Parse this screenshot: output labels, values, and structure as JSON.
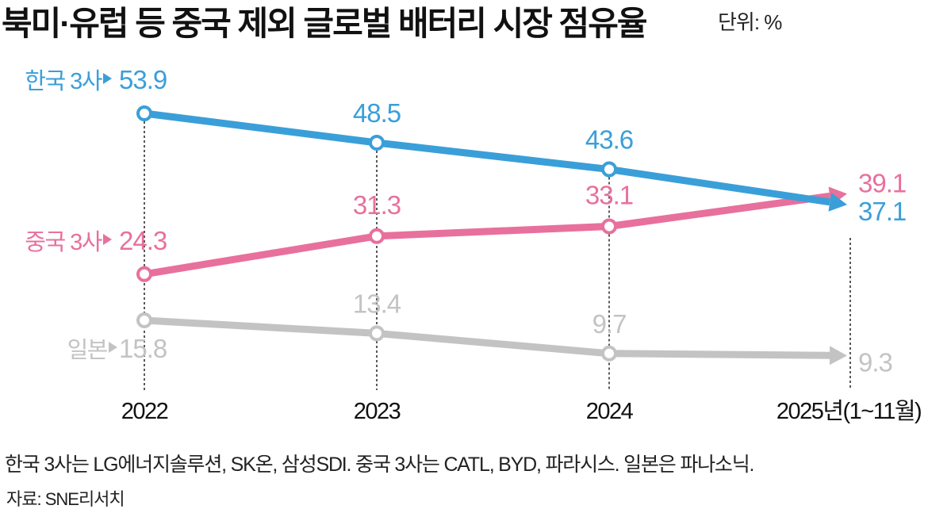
{
  "title": "북미·유럽 등 중국 제외 글로벌 배터리 시장 점유율",
  "unit": "단위: %",
  "note": "한국 3사는 LG에너지솔루션, SK온, 삼성SDI. 중국 3사는 CATL, BYD, 파라시스. 일본은 파나소닉.",
  "source": "자료: SNE리서치",
  "chart_data": {
    "type": "line",
    "categories": [
      "2022",
      "2023",
      "2024",
      "2025년(1~11월)"
    ],
    "series": [
      {
        "name": "한국 3사",
        "color": "#3a9fd8",
        "values": [
          53.9,
          48.5,
          43.6,
          37.1
        ]
      },
      {
        "name": "중국 3사",
        "color": "#e8709c",
        "values": [
          24.3,
          31.3,
          33.1,
          39.1
        ]
      },
      {
        "name": "일본",
        "color": "#c3c3c3",
        "values": [
          15.8,
          13.4,
          9.7,
          9.3
        ]
      }
    ],
    "grid": false,
    "legend": "inline-left"
  }
}
